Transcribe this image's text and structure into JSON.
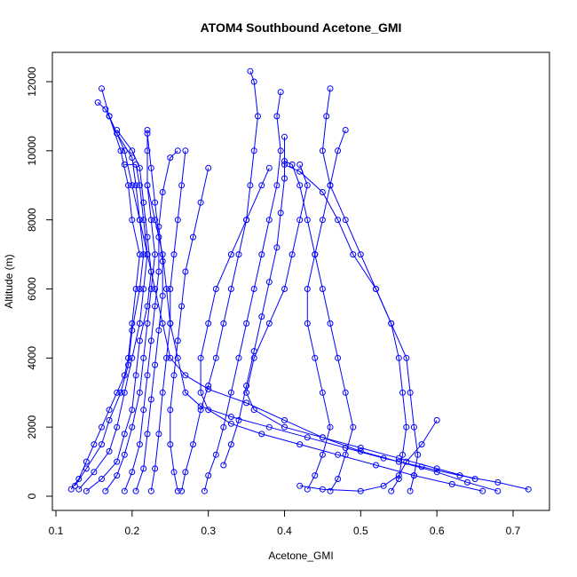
{
  "chart_data": {
    "type": "line",
    "title": "ATOM4 Southbound Acetone_GMI",
    "xlabel": "Acetone_GMI",
    "ylabel": "Altitude (m)",
    "xlim": [
      0.1,
      0.72
    ],
    "ylim": [
      0,
      12000
    ],
    "x_ticks": [
      "0.1",
      "0.2",
      "0.3",
      "0.4",
      "0.5",
      "0.6",
      "0.7"
    ],
    "y_ticks": [
      "0",
      "2000",
      "4000",
      "6000",
      "8000",
      "10000",
      "12000"
    ],
    "grid": false,
    "marker": "open circle",
    "series_color": "#0000ff",
    "series": [
      {
        "points": [
          [
            0.12,
            200
          ],
          [
            0.13,
            500
          ],
          [
            0.14,
            1000
          ],
          [
            0.15,
            1500
          ],
          [
            0.16,
            2000
          ],
          [
            0.17,
            2500
          ],
          [
            0.18,
            3000
          ],
          [
            0.19,
            3500
          ],
          [
            0.195,
            4000
          ],
          [
            0.2,
            5000
          ],
          [
            0.205,
            6000
          ],
          [
            0.21,
            7000
          ],
          [
            0.2,
            8000
          ],
          [
            0.195,
            9000
          ],
          [
            0.185,
            10000
          ],
          [
            0.17,
            11000
          ],
          [
            0.16,
            11800
          ]
        ]
      },
      {
        "points": [
          [
            0.125,
            300
          ],
          [
            0.14,
            800
          ],
          [
            0.16,
            1500
          ],
          [
            0.17,
            2200
          ],
          [
            0.185,
            3000
          ],
          [
            0.195,
            3800
          ],
          [
            0.2,
            4800
          ],
          [
            0.21,
            6000
          ],
          [
            0.215,
            7000
          ],
          [
            0.21,
            8000
          ],
          [
            0.205,
            9000
          ],
          [
            0.2,
            9800
          ],
          [
            0.18,
            10500
          ],
          [
            0.165,
            11200
          ],
          [
            0.155,
            11400
          ]
        ]
      },
      {
        "points": [
          [
            0.13,
            200
          ],
          [
            0.15,
            700
          ],
          [
            0.17,
            1300
          ],
          [
            0.18,
            2000
          ],
          [
            0.19,
            3000
          ],
          [
            0.2,
            4000
          ],
          [
            0.21,
            5000
          ],
          [
            0.215,
            6000
          ],
          [
            0.22,
            7000
          ],
          [
            0.215,
            8000
          ],
          [
            0.21,
            9000
          ],
          [
            0.205,
            9600
          ],
          [
            0.19,
            9600
          ]
        ]
      },
      {
        "points": [
          [
            0.14,
            150
          ],
          [
            0.16,
            500
          ],
          [
            0.18,
            1000
          ],
          [
            0.19,
            1800
          ],
          [
            0.2,
            2500
          ],
          [
            0.205,
            3500
          ],
          [
            0.21,
            4500
          ],
          [
            0.22,
            5500
          ],
          [
            0.225,
            6500
          ],
          [
            0.22,
            7500
          ],
          [
            0.215,
            8500
          ],
          [
            0.21,
            9500
          ],
          [
            0.2,
            10000
          ],
          [
            0.18,
            10600
          ]
        ]
      },
      {
        "points": [
          [
            0.165,
            150
          ],
          [
            0.18,
            600
          ],
          [
            0.19,
            1200
          ],
          [
            0.2,
            2000
          ],
          [
            0.21,
            3000
          ],
          [
            0.215,
            4000
          ],
          [
            0.22,
            5000
          ],
          [
            0.225,
            6000
          ],
          [
            0.23,
            7000
          ],
          [
            0.225,
            8000
          ],
          [
            0.22,
            9000
          ],
          [
            0.22,
            10000
          ],
          [
            0.22,
            10600
          ]
        ]
      },
      {
        "points": [
          [
            0.19,
            150
          ],
          [
            0.2,
            700
          ],
          [
            0.21,
            1500
          ],
          [
            0.215,
            2500
          ],
          [
            0.22,
            3500
          ],
          [
            0.225,
            4500
          ],
          [
            0.23,
            5500
          ],
          [
            0.235,
            6500
          ],
          [
            0.235,
            7500
          ],
          [
            0.23,
            8500
          ],
          [
            0.225,
            9500
          ],
          [
            0.22,
            10500
          ]
        ]
      },
      {
        "points": [
          [
            0.205,
            150
          ],
          [
            0.215,
            800
          ],
          [
            0.22,
            1800
          ],
          [
            0.225,
            2800
          ],
          [
            0.23,
            3800
          ],
          [
            0.235,
            4800
          ],
          [
            0.24,
            5800
          ],
          [
            0.24,
            6800
          ],
          [
            0.235,
            7800
          ],
          [
            0.24,
            8800
          ],
          [
            0.25,
            9800
          ],
          [
            0.26,
            10000
          ]
        ]
      },
      {
        "points": [
          [
            0.225,
            150
          ],
          [
            0.23,
            800
          ],
          [
            0.235,
            1800
          ],
          [
            0.24,
            3000
          ],
          [
            0.245,
            4000
          ],
          [
            0.25,
            5000
          ],
          [
            0.25,
            6000
          ],
          [
            0.255,
            7000
          ],
          [
            0.26,
            8000
          ],
          [
            0.265,
            9000
          ],
          [
            0.27,
            10000
          ]
        ]
      },
      {
        "points": [
          [
            0.26,
            150
          ],
          [
            0.255,
            700
          ],
          [
            0.25,
            1500
          ],
          [
            0.25,
            2500
          ],
          [
            0.255,
            3500
          ],
          [
            0.26,
            4500
          ],
          [
            0.265,
            5500
          ],
          [
            0.27,
            6500
          ],
          [
            0.28,
            7500
          ],
          [
            0.29,
            8500
          ],
          [
            0.3,
            9500
          ]
        ]
      },
      {
        "points": [
          [
            0.265,
            150
          ],
          [
            0.27,
            700
          ],
          [
            0.28,
            1500
          ],
          [
            0.29,
            2500
          ],
          [
            0.3,
            3200
          ],
          [
            0.31,
            4000
          ],
          [
            0.32,
            5000
          ],
          [
            0.33,
            6000
          ],
          [
            0.34,
            7000
          ],
          [
            0.35,
            8000
          ],
          [
            0.355,
            9000
          ],
          [
            0.36,
            10000
          ],
          [
            0.365,
            11000
          ],
          [
            0.36,
            12000
          ],
          [
            0.355,
            12300
          ]
        ]
      },
      {
        "points": [
          [
            0.295,
            150
          ],
          [
            0.3,
            600
          ],
          [
            0.31,
            1200
          ],
          [
            0.32,
            2000
          ],
          [
            0.33,
            3000
          ],
          [
            0.34,
            4000
          ],
          [
            0.35,
            5000
          ],
          [
            0.36,
            6000
          ],
          [
            0.37,
            7000
          ],
          [
            0.38,
            8000
          ],
          [
            0.39,
            9000
          ],
          [
            0.395,
            10000
          ],
          [
            0.39,
            11000
          ],
          [
            0.395,
            11700
          ]
        ]
      },
      {
        "points": [
          [
            0.32,
            900
          ],
          [
            0.33,
            1500
          ],
          [
            0.34,
            2200
          ],
          [
            0.35,
            3200
          ],
          [
            0.36,
            4200
          ],
          [
            0.37,
            5200
          ],
          [
            0.38,
            6200
          ],
          [
            0.39,
            7200
          ],
          [
            0.395,
            8200
          ],
          [
            0.4,
            9200
          ],
          [
            0.4,
            10400
          ]
        ]
      },
      {
        "points": [
          [
            0.43,
            200
          ],
          [
            0.44,
            600
          ],
          [
            0.45,
            1200
          ],
          [
            0.46,
            2000
          ],
          [
            0.45,
            3000
          ],
          [
            0.44,
            4000
          ],
          [
            0.43,
            5000
          ],
          [
            0.43,
            6000
          ],
          [
            0.44,
            7000
          ],
          [
            0.45,
            8000
          ],
          [
            0.46,
            9000
          ],
          [
            0.47,
            10000
          ],
          [
            0.48,
            10600
          ]
        ]
      },
      {
        "points": [
          [
            0.46,
            150
          ],
          [
            0.47,
            500
          ],
          [
            0.48,
            1200
          ],
          [
            0.49,
            2000
          ],
          [
            0.48,
            3000
          ],
          [
            0.47,
            4000
          ],
          [
            0.46,
            5000
          ],
          [
            0.45,
            6000
          ],
          [
            0.44,
            7000
          ],
          [
            0.43,
            8000
          ],
          [
            0.42,
            9000
          ],
          [
            0.41,
            9600
          ],
          [
            0.4,
            9700
          ]
        ]
      },
      {
        "points": [
          [
            0.54,
            150
          ],
          [
            0.55,
            500
          ],
          [
            0.555,
            1200
          ],
          [
            0.56,
            2000
          ],
          [
            0.555,
            3000
          ],
          [
            0.55,
            4000
          ],
          [
            0.54,
            5000
          ],
          [
            0.52,
            6000
          ],
          [
            0.5,
            7000
          ],
          [
            0.48,
            8000
          ],
          [
            0.46,
            9000
          ],
          [
            0.45,
            10000
          ],
          [
            0.455,
            11000
          ],
          [
            0.46,
            11800
          ]
        ]
      },
      {
        "points": [
          [
            0.565,
            150
          ],
          [
            0.57,
            600
          ],
          [
            0.575,
            1200
          ],
          [
            0.57,
            2000
          ],
          [
            0.565,
            3000
          ],
          [
            0.56,
            4000
          ],
          [
            0.54,
            5000
          ],
          [
            0.52,
            6000
          ],
          [
            0.49,
            7000
          ],
          [
            0.47,
            8000
          ],
          [
            0.45,
            8800
          ],
          [
            0.42,
            9400
          ],
          [
            0.4,
            9600
          ]
        ]
      },
      {
        "points": [
          [
            0.68,
            150
          ],
          [
            0.64,
            400
          ],
          [
            0.6,
            700
          ],
          [
            0.55,
            1000
          ],
          [
            0.5,
            1300
          ],
          [
            0.45,
            1700
          ],
          [
            0.4,
            2200
          ],
          [
            0.35,
            2700
          ],
          [
            0.3,
            3100
          ],
          [
            0.27,
            3500
          ],
          [
            0.25,
            4000
          ],
          [
            0.24,
            5000
          ],
          [
            0.23,
            6000
          ],
          [
            0.22,
            7000
          ],
          [
            0.21,
            8000
          ],
          [
            0.2,
            9000
          ],
          [
            0.19,
            10000
          ],
          [
            0.17,
            11000
          ]
        ]
      },
      {
        "points": [
          [
            0.72,
            200
          ],
          [
            0.68,
            400
          ],
          [
            0.63,
            600
          ],
          [
            0.58,
            850
          ],
          [
            0.53,
            1100
          ],
          [
            0.48,
            1400
          ],
          [
            0.43,
            1700
          ],
          [
            0.38,
            2000
          ],
          [
            0.33,
            2300
          ],
          [
            0.29,
            2600
          ],
          [
            0.27,
            3000
          ],
          [
            0.26,
            4000
          ],
          [
            0.25,
            5000
          ],
          [
            0.245,
            6000
          ],
          [
            0.24,
            7000
          ],
          [
            0.23,
            8000
          ],
          [
            0.22,
            9000
          ]
        ]
      },
      {
        "points": [
          [
            0.66,
            150
          ],
          [
            0.62,
            350
          ],
          [
            0.57,
            600
          ],
          [
            0.52,
            900
          ],
          [
            0.47,
            1200
          ],
          [
            0.42,
            1500
          ],
          [
            0.37,
            1800
          ],
          [
            0.33,
            2100
          ],
          [
            0.3,
            2500
          ],
          [
            0.29,
            3000
          ],
          [
            0.29,
            4000
          ],
          [
            0.3,
            5000
          ],
          [
            0.31,
            6000
          ],
          [
            0.33,
            7000
          ],
          [
            0.35,
            8000
          ],
          [
            0.37,
            9000
          ],
          [
            0.38,
            9500
          ]
        ]
      },
      {
        "points": [
          [
            0.6,
            2200
          ],
          [
            0.58,
            1500
          ],
          [
            0.56,
            1000
          ],
          [
            0.55,
            600
          ],
          [
            0.53,
            300
          ],
          [
            0.5,
            150
          ],
          [
            0.45,
            200
          ],
          [
            0.42,
            300
          ]
        ]
      },
      {
        "points": [
          [
            0.65,
            500
          ],
          [
            0.6,
            800
          ],
          [
            0.55,
            1100
          ],
          [
            0.5,
            1400
          ],
          [
            0.45,
            1700
          ],
          [
            0.4,
            2000
          ],
          [
            0.36,
            2500
          ],
          [
            0.35,
            3000
          ],
          [
            0.36,
            4000
          ],
          [
            0.38,
            5000
          ],
          [
            0.4,
            6000
          ],
          [
            0.41,
            7000
          ],
          [
            0.42,
            8000
          ],
          [
            0.43,
            9000
          ],
          [
            0.42,
            9600
          ]
        ]
      }
    ]
  }
}
